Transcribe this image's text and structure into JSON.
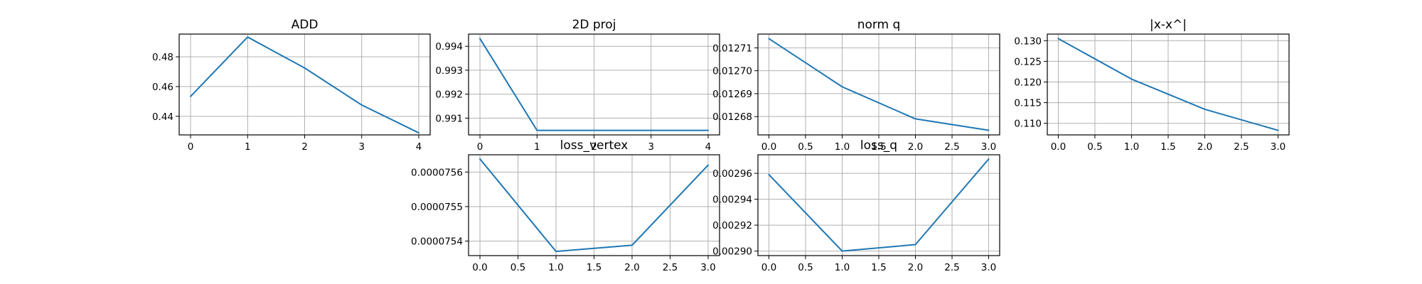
{
  "figure": {
    "background": "#ffffff",
    "line_color": "#1f77b4",
    "grid_color": "#b0b0b0"
  },
  "chart_data": [
    {
      "type": "line",
      "title": "ADD",
      "xlabel": "",
      "ylabel": "",
      "x": [
        0,
        1,
        2,
        3,
        4
      ],
      "series": [
        {
          "values": [
            0.4534,
            0.4933,
            0.4725,
            0.4476,
            0.4289
          ]
        }
      ],
      "xlim": [
        -0.2,
        4.2
      ],
      "ylim": [
        0.4275,
        0.4953
      ],
      "xticks": [
        0,
        1,
        2,
        3,
        4
      ],
      "xtick_labels": [
        "0",
        "1",
        "2",
        "3",
        "4"
      ],
      "yticks": [
        0.44,
        0.46,
        0.48
      ],
      "ytick_labels": [
        "0.44",
        "0.46",
        "0.48"
      ],
      "grid": true
    },
    {
      "type": "line",
      "title": "2D proj",
      "xlabel": "",
      "ylabel": "",
      "x": [
        0,
        1,
        2,
        3,
        4
      ],
      "series": [
        {
          "values": [
            0.99432,
            0.99049,
            0.99049,
            0.99049,
            0.99049
          ]
        }
      ],
      "xlim": [
        -0.2,
        4.2
      ],
      "ylim": [
        0.9903,
        0.99451
      ],
      "xticks": [
        0,
        1,
        2,
        3,
        4
      ],
      "xtick_labels": [
        "0",
        "1",
        "2",
        "3",
        "4"
      ],
      "yticks": [
        0.991,
        0.992,
        0.993,
        0.994
      ],
      "ytick_labels": [
        "0.991",
        "0.992",
        "0.993",
        "0.994"
      ],
      "grid": true
    },
    {
      "type": "line",
      "title": "norm q",
      "xlabel": "",
      "ylabel": "",
      "x": [
        0,
        1,
        2,
        3
      ],
      "series": [
        {
          "values": [
            0.012714,
            0.012693,
            0.012679,
            0.012674
          ]
        }
      ],
      "xlim": [
        -0.15,
        3.15
      ],
      "ylim": [
        0.012672,
        0.012716
      ],
      "xticks": [
        0,
        0.5,
        1,
        1.5,
        2,
        2.5,
        3
      ],
      "xtick_labels": [
        "0.0",
        "0.5",
        "1.0",
        "1.5",
        "2.0",
        "2.5",
        "3.0"
      ],
      "yticks": [
        0.01268,
        0.01269,
        0.0127,
        0.01271
      ],
      "ytick_labels": [
        "0.01268",
        "0.01269",
        "0.01270",
        "0.01271"
      ],
      "grid": true
    },
    {
      "type": "line",
      "title": "|x-x^|",
      "xlabel": "",
      "ylabel": "",
      "x": [
        0,
        1,
        2,
        3
      ],
      "series": [
        {
          "values": [
            0.1305,
            0.1207,
            0.1134,
            0.1083
          ]
        }
      ],
      "xlim": [
        -0.15,
        3.15
      ],
      "ylim": [
        0.1072,
        0.1316
      ],
      "xticks": [
        0,
        0.5,
        1,
        1.5,
        2,
        2.5,
        3
      ],
      "xtick_labels": [
        "0.0",
        "0.5",
        "1.0",
        "1.5",
        "2.0",
        "2.5",
        "3.0"
      ],
      "yticks": [
        0.11,
        0.115,
        0.12,
        0.125,
        0.13
      ],
      "ytick_labels": [
        "0.110",
        "0.115",
        "0.120",
        "0.125",
        "0.130"
      ],
      "grid": true
    },
    {
      "type": "line",
      "title": "loss_vertex",
      "xlabel": "",
      "ylabel": "",
      "x": [
        0,
        1,
        2,
        3
      ],
      "series": [
        {
          "values": [
            7.5638e-05,
            7.537e-05,
            7.5388e-05,
            7.562e-05
          ]
        }
      ],
      "xlim": [
        -0.15,
        3.15
      ],
      "ylim": [
        7.5358e-05,
        7.565e-05
      ],
      "xticks": [
        0,
        0.5,
        1,
        1.5,
        2,
        2.5,
        3
      ],
      "xtick_labels": [
        "0.0",
        "0.5",
        "1.0",
        "1.5",
        "2.0",
        "2.5",
        "3.0"
      ],
      "yticks": [
        7.54e-05,
        7.55e-05,
        7.56e-05
      ],
      "ytick_labels": [
        "0.0000754",
        "0.0000755",
        "0.0000756"
      ],
      "grid": true
    },
    {
      "type": "line",
      "title": "loss_q",
      "xlabel": "",
      "ylabel": "",
      "x": [
        0,
        1,
        2,
        3
      ],
      "series": [
        {
          "values": [
            0.002959,
            0.0029,
            0.002905,
            0.002971
          ]
        }
      ],
      "xlim": [
        -0.15,
        3.15
      ],
      "ylim": [
        0.0028965,
        0.0029743
      ],
      "xticks": [
        0,
        0.5,
        1,
        1.5,
        2,
        2.5,
        3
      ],
      "xtick_labels": [
        "0.0",
        "0.5",
        "1.0",
        "1.5",
        "2.0",
        "2.5",
        "3.0"
      ],
      "yticks": [
        0.0029,
        0.00292,
        0.00294,
        0.00296
      ],
      "ytick_labels": [
        "0.00290",
        "0.00292",
        "0.00294",
        "0.00296"
      ],
      "grid": true
    }
  ]
}
